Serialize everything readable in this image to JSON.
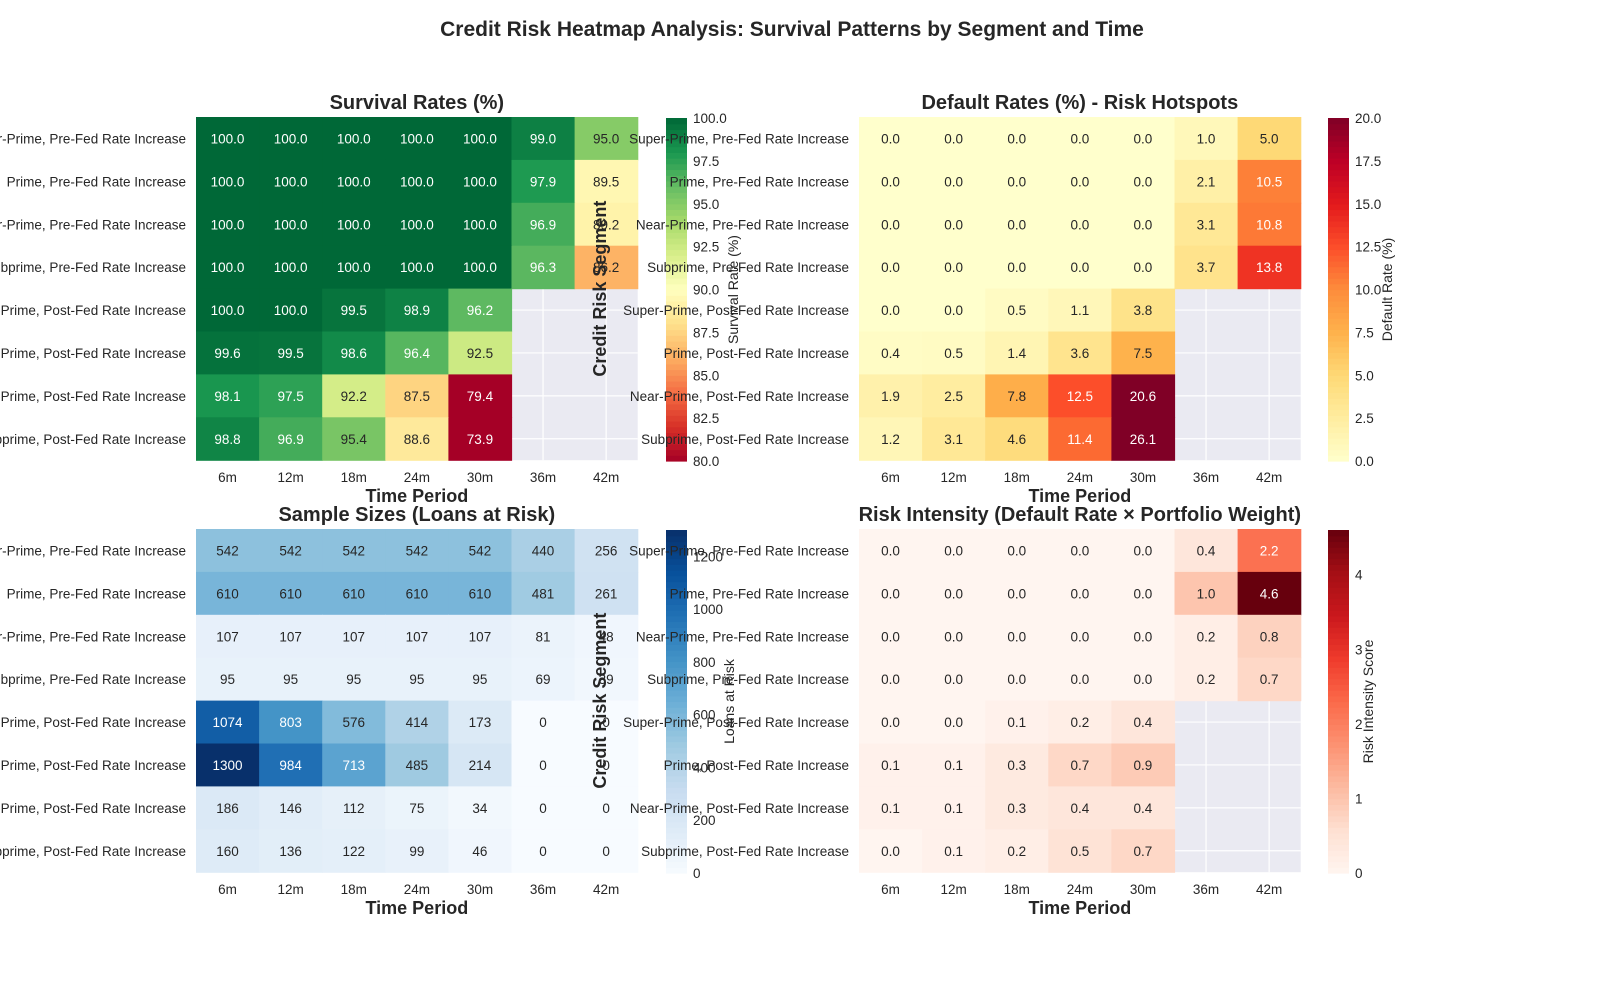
{
  "figure": {
    "title": "Credit Risk Heatmap Analysis: Survival Patterns by Segment and Time"
  },
  "chart_data": [
    {
      "type": "heatmap",
      "id": "survival",
      "title": "Survival Rates (%)",
      "xlabel": "Time Period",
      "ylabel": "Credit Risk Segment",
      "colorbar_label": "Survival Rate (%)",
      "colormap": "RdYlGn",
      "vmin": 80.0,
      "vmax": 100.0,
      "colorbar_ticks": [
        "80.0",
        "82.5",
        "85.0",
        "87.5",
        "90.0",
        "92.5",
        "95.0",
        "97.5",
        "100.0"
      ],
      "x": [
        "6m",
        "12m",
        "18m",
        "24m",
        "30m",
        "36m",
        "42m"
      ],
      "y": [
        "Super-Prime, Pre-Fed Rate Increase",
        "Prime, Pre-Fed Rate Increase",
        "Near-Prime, Pre-Fed Rate Increase",
        "Subprime, Pre-Fed Rate Increase",
        "Super-Prime, Post-Fed Rate Increase",
        "Prime, Post-Fed Rate Increase",
        "Near-Prime, Post-Fed Rate Increase",
        "Subprime, Post-Fed Rate Increase"
      ],
      "values": [
        [
          100.0,
          100.0,
          100.0,
          100.0,
          100.0,
          99.0,
          95.0
        ],
        [
          100.0,
          100.0,
          100.0,
          100.0,
          100.0,
          97.9,
          89.5
        ],
        [
          100.0,
          100.0,
          100.0,
          100.0,
          100.0,
          96.9,
          89.2
        ],
        [
          100.0,
          100.0,
          100.0,
          100.0,
          100.0,
          96.3,
          86.2
        ],
        [
          100.0,
          100.0,
          99.5,
          98.9,
          96.2,
          null,
          null
        ],
        [
          99.6,
          99.5,
          98.6,
          96.4,
          92.5,
          null,
          null
        ],
        [
          98.1,
          97.5,
          92.2,
          87.5,
          79.4,
          null,
          null
        ],
        [
          98.8,
          96.9,
          95.4,
          88.6,
          73.9,
          null,
          null
        ]
      ]
    },
    {
      "type": "heatmap",
      "id": "default",
      "title": "Default Rates (%) - Risk Hotspots",
      "xlabel": "Time Period",
      "ylabel": "",
      "colorbar_label": "Default Rate (%)",
      "colormap": "YlOrRd",
      "vmin": 0.0,
      "vmax": 20.0,
      "colorbar_ticks": [
        "0.0",
        "2.5",
        "5.0",
        "7.5",
        "10.0",
        "12.5",
        "15.0",
        "17.5",
        "20.0"
      ],
      "x": [
        "6m",
        "12m",
        "18m",
        "24m",
        "30m",
        "36m",
        "42m"
      ],
      "y": [
        "Super-Prime, Pre-Fed Rate Increase",
        "Prime, Pre-Fed Rate Increase",
        "Near-Prime, Pre-Fed Rate Increase",
        "Subprime, Pre-Fed Rate Increase",
        "Super-Prime, Post-Fed Rate Increase",
        "Prime, Post-Fed Rate Increase",
        "Near-Prime, Post-Fed Rate Increase",
        "Subprime, Post-Fed Rate Increase"
      ],
      "values": [
        [
          0.0,
          0.0,
          0.0,
          0.0,
          0.0,
          1.0,
          5.0
        ],
        [
          0.0,
          0.0,
          0.0,
          0.0,
          0.0,
          2.1,
          10.5
        ],
        [
          0.0,
          0.0,
          0.0,
          0.0,
          0.0,
          3.1,
          10.8
        ],
        [
          0.0,
          0.0,
          0.0,
          0.0,
          0.0,
          3.7,
          13.8
        ],
        [
          0.0,
          0.0,
          0.5,
          1.1,
          3.8,
          null,
          null
        ],
        [
          0.4,
          0.5,
          1.4,
          3.6,
          7.5,
          null,
          null
        ],
        [
          1.9,
          2.5,
          7.8,
          12.5,
          20.6,
          null,
          null
        ],
        [
          1.2,
          3.1,
          4.6,
          11.4,
          26.1,
          null,
          null
        ]
      ]
    },
    {
      "type": "heatmap",
      "id": "samples",
      "title": "Sample Sizes (Loans at Risk)",
      "xlabel": "Time Period",
      "ylabel": "Credit Risk Segment",
      "colorbar_label": "Loans at Risk",
      "colormap": "Blues",
      "vmin": 0,
      "vmax": 1300,
      "colorbar_ticks": [
        "0",
        "200",
        "400",
        "600",
        "800",
        "1000",
        "1200"
      ],
      "x": [
        "6m",
        "12m",
        "18m",
        "24m",
        "30m",
        "36m",
        "42m"
      ],
      "y": [
        "Super-Prime, Pre-Fed Rate Increase",
        "Prime, Pre-Fed Rate Increase",
        "Near-Prime, Pre-Fed Rate Increase",
        "Subprime, Pre-Fed Rate Increase",
        "Super-Prime, Post-Fed Rate Increase",
        "Prime, Post-Fed Rate Increase",
        "Near-Prime, Post-Fed Rate Increase",
        "Subprime, Post-Fed Rate Increase"
      ],
      "values": [
        [
          542,
          542,
          542,
          542,
          542,
          440,
          256
        ],
        [
          610,
          610,
          610,
          610,
          610,
          481,
          261
        ],
        [
          107,
          107,
          107,
          107,
          107,
          81,
          48
        ],
        [
          95,
          95,
          95,
          95,
          95,
          69,
          39
        ],
        [
          1074,
          803,
          576,
          414,
          173,
          0,
          0
        ],
        [
          1300,
          984,
          713,
          485,
          214,
          0,
          0
        ],
        [
          186,
          146,
          112,
          75,
          34,
          0,
          0
        ],
        [
          160,
          136,
          122,
          99,
          46,
          0,
          0
        ]
      ]
    },
    {
      "type": "heatmap",
      "id": "intensity",
      "title": "Risk Intensity (Default Rate × Portfolio Weight)",
      "xlabel": "Time Period",
      "ylabel": "",
      "colorbar_label": "Risk Intensity Score",
      "colormap": "Reds",
      "vmin": 0,
      "vmax": 4.6,
      "colorbar_ticks": [
        "0",
        "1",
        "2",
        "3",
        "4"
      ],
      "x": [
        "6m",
        "12m",
        "18m",
        "24m",
        "30m",
        "36m",
        "42m"
      ],
      "y": [
        "Super-Prime, Pre-Fed Rate Increase",
        "Prime, Pre-Fed Rate Increase",
        "Near-Prime, Pre-Fed Rate Increase",
        "Subprime, Pre-Fed Rate Increase",
        "Super-Prime, Post-Fed Rate Increase",
        "Prime, Post-Fed Rate Increase",
        "Near-Prime, Post-Fed Rate Increase",
        "Subprime, Post-Fed Rate Increase"
      ],
      "values": [
        [
          0.0,
          0.0,
          0.0,
          0.0,
          0.0,
          0.4,
          2.2
        ],
        [
          0.0,
          0.0,
          0.0,
          0.0,
          0.0,
          1.0,
          4.6
        ],
        [
          0.0,
          0.0,
          0.0,
          0.0,
          0.0,
          0.2,
          0.8
        ],
        [
          0.0,
          0.0,
          0.0,
          0.0,
          0.0,
          0.2,
          0.7
        ],
        [
          0.0,
          0.0,
          0.1,
          0.2,
          0.4,
          null,
          null
        ],
        [
          0.1,
          0.1,
          0.3,
          0.7,
          0.9,
          null,
          null
        ],
        [
          0.1,
          0.1,
          0.3,
          0.4,
          0.4,
          null,
          null
        ],
        [
          0.0,
          0.1,
          0.2,
          0.5,
          0.7,
          null,
          null
        ]
      ]
    }
  ]
}
